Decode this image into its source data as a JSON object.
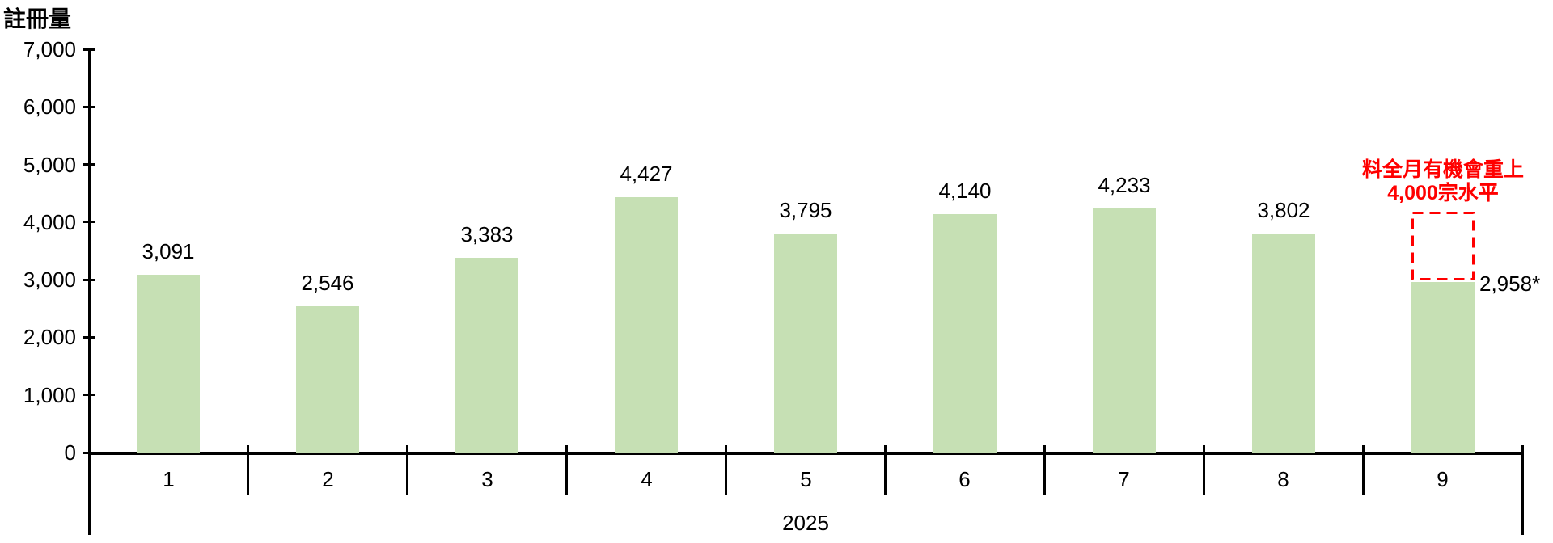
{
  "chart_data": {
    "type": "bar",
    "title": "註冊量",
    "xlabel": "2025",
    "categories": [
      "1",
      "2",
      "3",
      "4",
      "5",
      "6",
      "7",
      "8",
      "9"
    ],
    "values": [
      3091,
      2546,
      3383,
      4427,
      3795,
      4140,
      4233,
      3802,
      2958
    ],
    "bar_labels": [
      "3,091",
      "2,546",
      "3,383",
      "4,427",
      "3,795",
      "4,140",
      "4,233",
      "3,802",
      "2,958*"
    ],
    "last_label_placement": "right-of-bar-top",
    "ylim": [
      0,
      7000
    ],
    "ytick_values": [
      0,
      1000,
      2000,
      3000,
      4000,
      5000,
      6000,
      7000
    ],
    "ytick_labels": [
      "0",
      "1,000",
      "2,000",
      "3,000",
      "4,000",
      "5,000",
      "6,000",
      "7,000"
    ],
    "grid": false,
    "legend": false,
    "bar_color": "#c6e0b4",
    "axis_color": "#000000",
    "annotation": {
      "lines": [
        "料全月有機會重上",
        "4,000宗水平"
      ],
      "color": "#ff0000",
      "box": {
        "category_index": 8,
        "top_value": 4180,
        "bottom_value": 2990
      }
    }
  }
}
